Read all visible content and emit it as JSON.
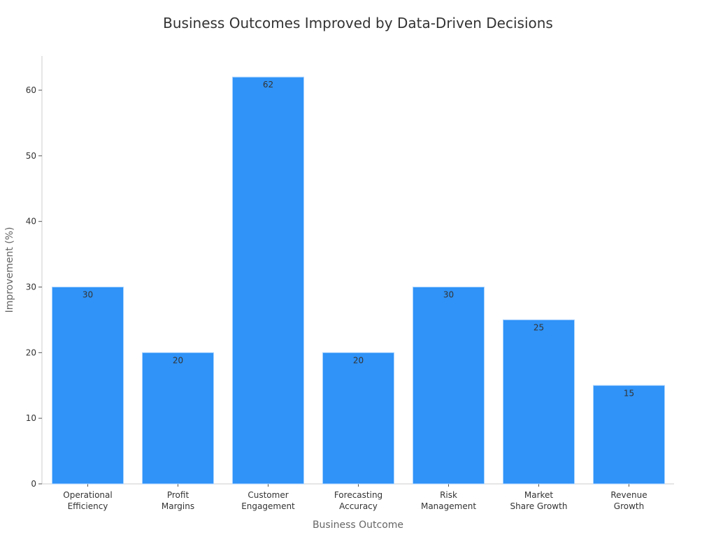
{
  "chart_data": {
    "type": "bar",
    "title": "Business Outcomes Improved by Data-Driven Decisions",
    "xlabel": "Business Outcome",
    "ylabel": "Improvement (%)",
    "categories": [
      [
        "Operational",
        "Efficiency"
      ],
      [
        "Profit",
        "Margins"
      ],
      [
        "Customer",
        "Engagement"
      ],
      [
        "Forecasting",
        "Accuracy"
      ],
      [
        "Risk",
        "Management"
      ],
      [
        "Market",
        "Share Growth"
      ],
      [
        "Revenue",
        "Growth"
      ]
    ],
    "values": [
      30,
      20,
      62,
      20,
      30,
      25,
      15
    ],
    "ylim": [
      0,
      65
    ],
    "yticks": [
      0,
      10,
      20,
      30,
      40,
      50,
      60
    ],
    "grid": false,
    "legend": "none",
    "colors": {
      "bar": "#2f93f8",
      "bar_edge": "#a8d2ff",
      "axis": "#cccccc"
    }
  }
}
